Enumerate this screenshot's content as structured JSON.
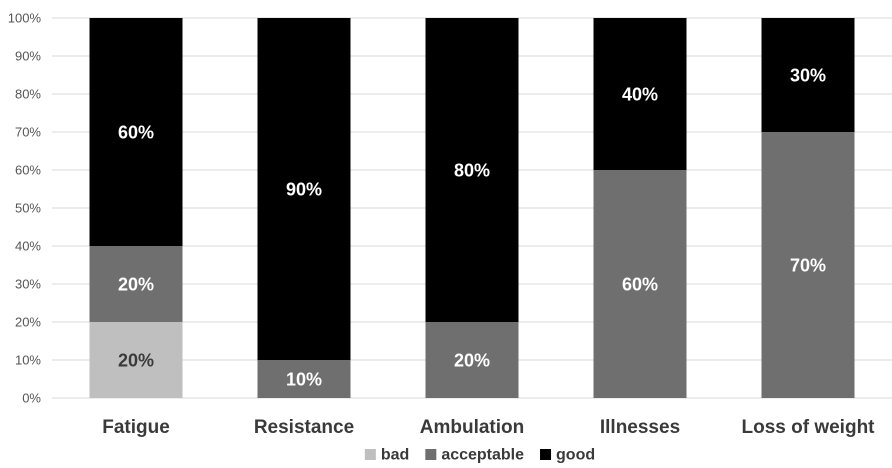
{
  "chart_data": {
    "type": "bar",
    "stacked": true,
    "categories": [
      "Fatigue",
      "Resistance",
      "Ambulation",
      "Illnesses",
      "Loss of weight"
    ],
    "series": [
      {
        "name": "bad",
        "color": "#bfbfbf",
        "values": [
          20,
          0,
          0,
          0,
          0
        ],
        "labels": [
          "20%",
          "",
          "",
          "",
          ""
        ]
      },
      {
        "name": "acceptable",
        "color": "#6f6f6f",
        "values": [
          20,
          10,
          20,
          60,
          70
        ],
        "labels": [
          "20%",
          "10%",
          "20%",
          "60%",
          "70%"
        ]
      },
      {
        "name": "good",
        "color": "#000000",
        "values": [
          60,
          90,
          80,
          40,
          30
        ],
        "labels": [
          "60%",
          "90%",
          "80%",
          "40%",
          "30%"
        ]
      }
    ],
    "y_ticks": [
      "0%",
      "10%",
      "20%",
      "30%",
      "40%",
      "50%",
      "60%",
      "70%",
      "80%",
      "90%",
      "100%"
    ],
    "ylim": [
      0,
      100
    ],
    "title": "",
    "xlabel": "",
    "ylabel": "",
    "grid": true,
    "legend_position": "bottom"
  }
}
